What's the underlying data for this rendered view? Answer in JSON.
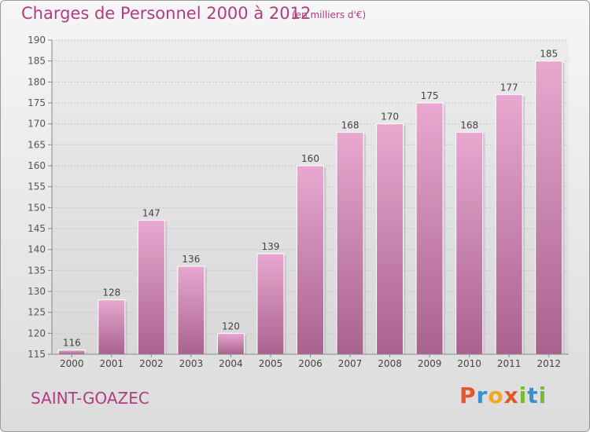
{
  "header": {
    "title": "Charges de Personnel 2000 à 2012",
    "subtitle": "(en milliers d'€)"
  },
  "footer": {
    "commune": "SAINT-GOAZEC",
    "logo_text": "Proxiti",
    "logo_letters": [
      {
        "ch": "P",
        "color": "#e0592a"
      },
      {
        "ch": "r",
        "color": "#3a8fd0"
      },
      {
        "ch": "o",
        "color": "#f2a81d"
      },
      {
        "ch": "x",
        "color": "#e0592a"
      },
      {
        "ch": "i",
        "color": "#7cb832"
      },
      {
        "ch": "t",
        "color": "#3a8fd0"
      },
      {
        "ch": "i",
        "color": "#7cb832"
      }
    ]
  },
  "colors": {
    "bar_top": "#e8a8d0",
    "bar_bottom": "#a8628e",
    "text": "#b03c82",
    "grid": "#c8c8c8",
    "plot_bg": "#e4e4e4"
  },
  "chart_data": {
    "type": "bar",
    "categories": [
      "2000",
      "2001",
      "2002",
      "2003",
      "2004",
      "2005",
      "2006",
      "2007",
      "2008",
      "2009",
      "2010",
      "2011",
      "2012"
    ],
    "values": [
      116,
      128,
      147,
      136,
      120,
      139,
      160,
      168,
      170,
      175,
      168,
      177,
      185
    ],
    "title": "Charges de Personnel 2000 à 2012",
    "xlabel": "",
    "ylabel": "",
    "ylim": [
      115,
      190
    ],
    "yticks": [
      115,
      120,
      125,
      130,
      135,
      140,
      145,
      150,
      155,
      160,
      165,
      170,
      175,
      180,
      185,
      190
    ],
    "grid": true,
    "legend": "none"
  }
}
